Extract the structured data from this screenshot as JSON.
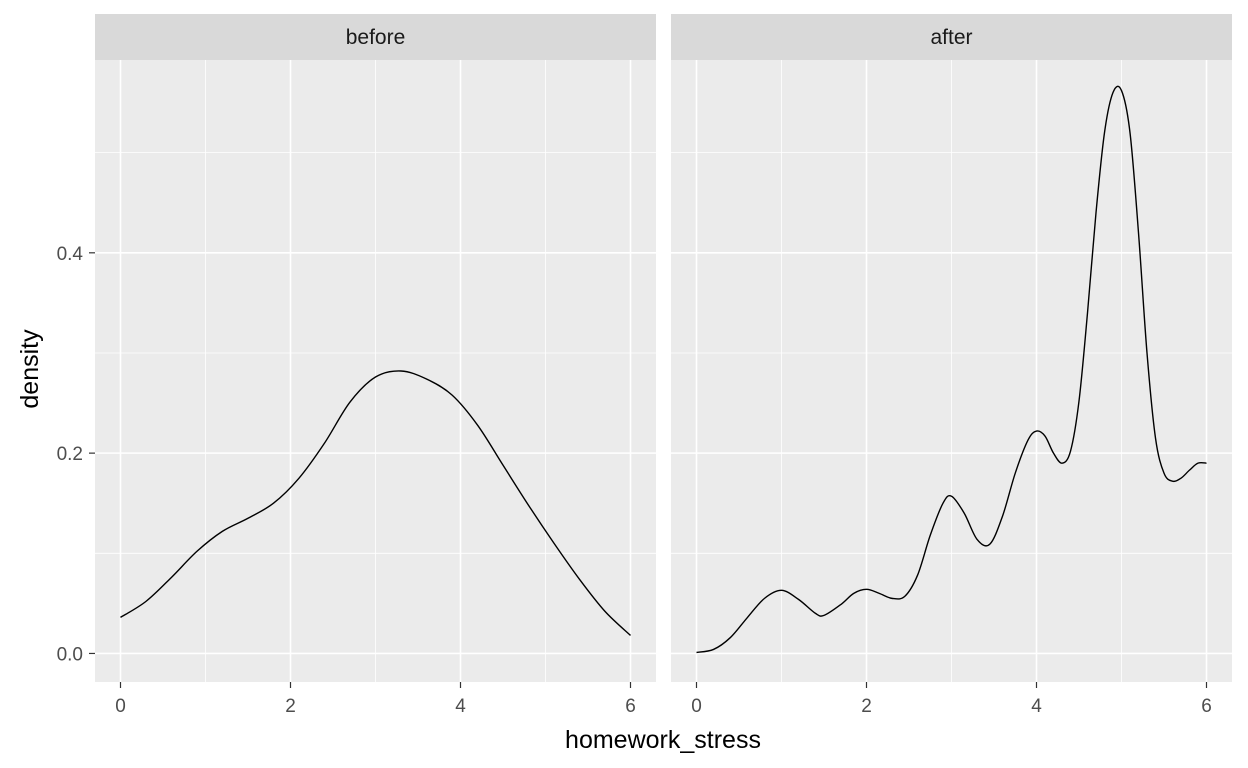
{
  "chart_data": {
    "type": "line",
    "subtype": "density-facets",
    "xlabel": "homework_stress",
    "ylabel": "density",
    "xlim": [
      -0.3,
      6.3
    ],
    "ylim": [
      -0.0285,
      0.5925
    ],
    "x_ticks": [
      "0",
      "2",
      "4",
      "6"
    ],
    "y_ticks": [
      "0.0",
      "0.2",
      "0.4"
    ],
    "x_tick_values": [
      0,
      2,
      4,
      6
    ],
    "x_minor_values": [
      1,
      3,
      5
    ],
    "y_tick_values": [
      0.0,
      0.2,
      0.4
    ],
    "y_minor_values": [
      0.1,
      0.3,
      0.5
    ],
    "grid": true,
    "colors": {
      "panel_background": "#EBEBEB",
      "strip_background": "#D9D9D9",
      "grid_major": "#FFFFFF",
      "line": "#000000",
      "tick": "#333333"
    },
    "facets": [
      {
        "label": "before",
        "x": [
          0,
          0.3,
          0.6,
          0.9,
          1.2,
          1.5,
          1.8,
          2.1,
          2.4,
          2.7,
          3.0,
          3.3,
          3.6,
          3.9,
          4.2,
          4.5,
          4.8,
          5.1,
          5.4,
          5.7,
          6.0
        ],
        "y": [
          0.036,
          0.052,
          0.076,
          0.102,
          0.122,
          0.135,
          0.15,
          0.175,
          0.21,
          0.251,
          0.276,
          0.282,
          0.274,
          0.258,
          0.228,
          0.188,
          0.148,
          0.11,
          0.074,
          0.042,
          0.018
        ]
      },
      {
        "label": "after",
        "x": [
          0,
          0.2,
          0.4,
          0.6,
          0.8,
          1.0,
          1.2,
          1.4,
          1.5,
          1.7,
          1.85,
          2.0,
          2.15,
          2.3,
          2.45,
          2.6,
          2.75,
          2.9,
          3.0,
          3.15,
          3.3,
          3.45,
          3.6,
          3.75,
          3.9,
          4.0,
          4.1,
          4.2,
          4.3,
          4.4,
          4.5,
          4.6,
          4.7,
          4.8,
          4.9,
          5.0,
          5.1,
          5.2,
          5.3,
          5.4,
          5.5,
          5.6,
          5.7,
          5.8,
          5.9,
          6.0
        ],
        "y": [
          0.001,
          0.004,
          0.016,
          0.036,
          0.055,
          0.063,
          0.054,
          0.04,
          0.038,
          0.049,
          0.06,
          0.064,
          0.06,
          0.055,
          0.057,
          0.078,
          0.118,
          0.15,
          0.157,
          0.14,
          0.114,
          0.109,
          0.137,
          0.18,
          0.213,
          0.222,
          0.217,
          0.2,
          0.19,
          0.202,
          0.252,
          0.34,
          0.44,
          0.52,
          0.56,
          0.562,
          0.52,
          0.42,
          0.3,
          0.215,
          0.18,
          0.172,
          0.175,
          0.183,
          0.19,
          0.19
        ]
      }
    ]
  }
}
